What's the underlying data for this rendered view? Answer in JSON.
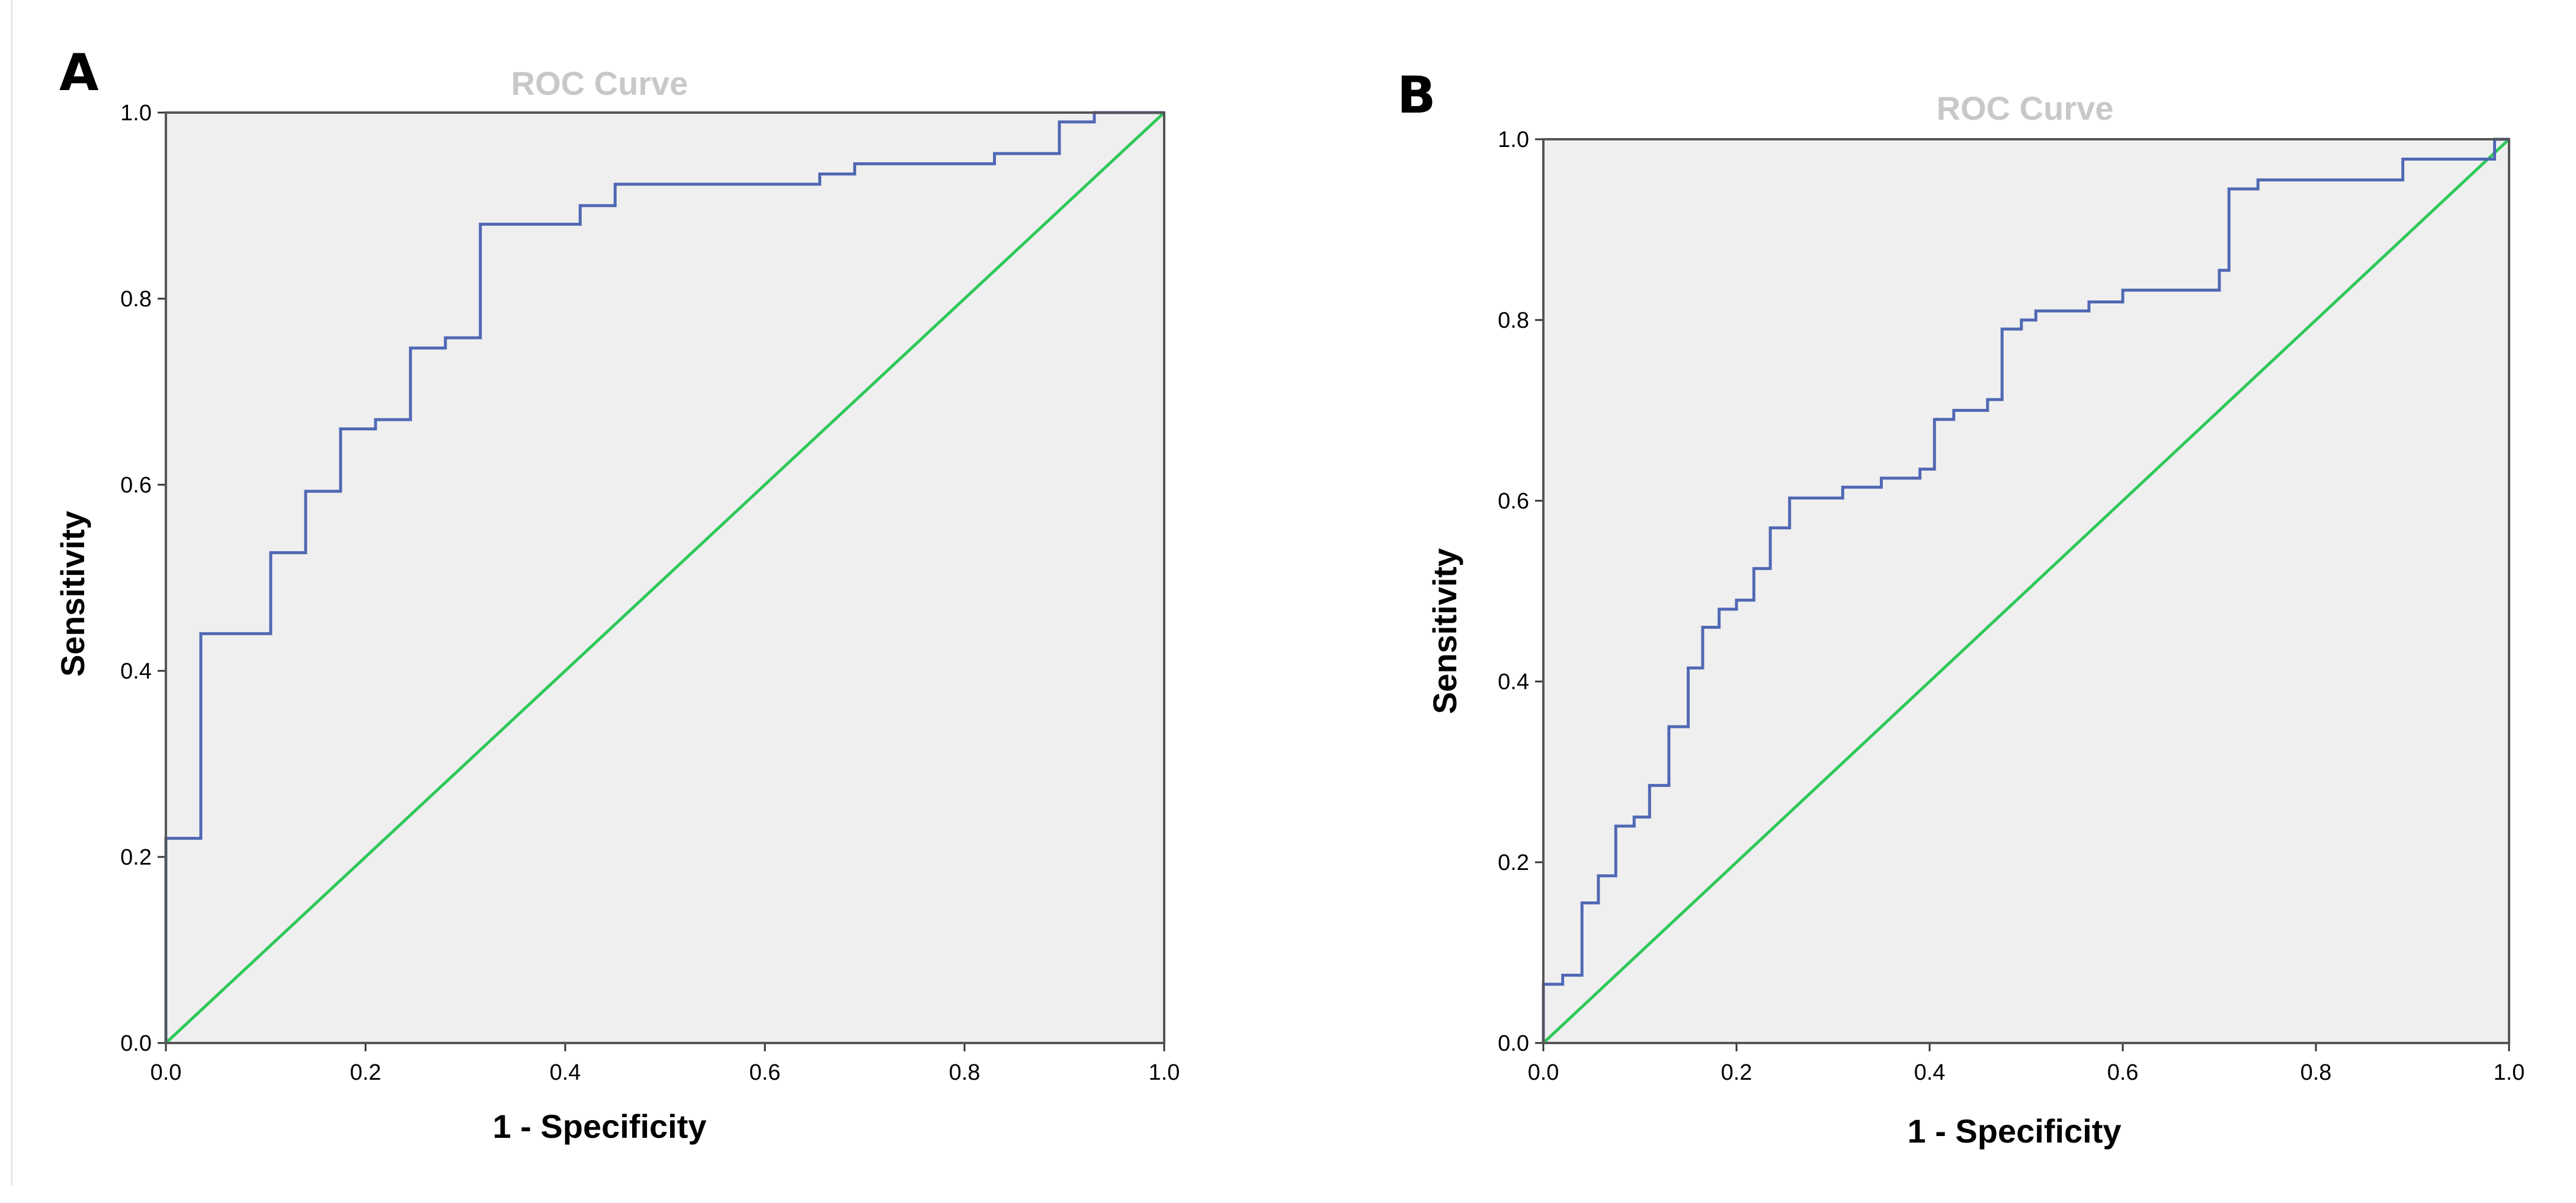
{
  "colors": {
    "roc_curve": "#5068b4",
    "reference_line": "#2ec85a",
    "plot_background": "#efefef",
    "frame": "#555555"
  },
  "chart_data": [
    {
      "type": "line",
      "panel": "A",
      "title": "ROC Curve",
      "xlabel": "1 - Specificity",
      "ylabel": "Sensitivity",
      "xlim": [
        0.0,
        1.0
      ],
      "ylim": [
        0.0,
        1.0
      ],
      "x_ticks": [
        "0.0",
        "0.2",
        "0.4",
        "0.6",
        "0.8",
        "1.0"
      ],
      "y_ticks": [
        "0.0",
        "0.2",
        "0.4",
        "0.6",
        "0.8",
        "1.0"
      ],
      "grid": false,
      "series": [
        {
          "name": "ROC curve",
          "x": [
            0.0,
            0.0,
            0.035,
            0.035,
            0.105,
            0.105,
            0.14,
            0.14,
            0.175,
            0.175,
            0.21,
            0.21,
            0.245,
            0.245,
            0.28,
            0.28,
            0.315,
            0.315,
            0.415,
            0.415,
            0.45,
            0.45,
            0.655,
            0.655,
            0.69,
            0.69,
            0.83,
            0.83,
            0.895,
            0.895,
            0.93,
            0.93,
            1.0
          ],
          "y": [
            0.0,
            0.22,
            0.22,
            0.44,
            0.44,
            0.527,
            0.527,
            0.593,
            0.593,
            0.66,
            0.66,
            0.67,
            0.67,
            0.747,
            0.747,
            0.758,
            0.758,
            0.88,
            0.88,
            0.9,
            0.9,
            0.923,
            0.923,
            0.934,
            0.934,
            0.945,
            0.945,
            0.956,
            0.956,
            0.99,
            0.99,
            1.0,
            1.0
          ]
        },
        {
          "name": "Reference line",
          "x": [
            0.0,
            1.0
          ],
          "y": [
            0.0,
            1.0
          ]
        }
      ]
    },
    {
      "type": "line",
      "panel": "B",
      "title": "ROC Curve",
      "xlabel": "1 - Specificity",
      "ylabel": "Sensitivity",
      "xlim": [
        0.0,
        1.0
      ],
      "ylim": [
        0.0,
        1.0
      ],
      "x_ticks": [
        "0.0",
        "0.2",
        "0.4",
        "0.6",
        "0.8",
        "1.0"
      ],
      "y_ticks": [
        "0.0",
        "0.2",
        "0.4",
        "0.6",
        "0.8",
        "1.0"
      ],
      "grid": false,
      "series": [
        {
          "name": "ROC curve",
          "x": [
            0.0,
            0.0,
            0.02,
            0.02,
            0.04,
            0.04,
            0.057,
            0.057,
            0.075,
            0.075,
            0.094,
            0.094,
            0.11,
            0.11,
            0.13,
            0.13,
            0.15,
            0.15,
            0.165,
            0.165,
            0.182,
            0.182,
            0.2,
            0.2,
            0.218,
            0.218,
            0.235,
            0.235,
            0.255,
            0.255,
            0.31,
            0.31,
            0.35,
            0.35,
            0.39,
            0.39,
            0.405,
            0.405,
            0.425,
            0.425,
            0.46,
            0.46,
            0.475,
            0.475,
            0.495,
            0.495,
            0.51,
            0.51,
            0.565,
            0.565,
            0.6,
            0.6,
            0.7,
            0.7,
            0.71,
            0.71,
            0.74,
            0.74,
            0.89,
            0.89,
            0.985,
            0.985,
            1.0
          ],
          "y": [
            0.0,
            0.065,
            0.065,
            0.075,
            0.075,
            0.155,
            0.155,
            0.185,
            0.185,
            0.24,
            0.24,
            0.25,
            0.25,
            0.285,
            0.285,
            0.35,
            0.35,
            0.415,
            0.415,
            0.46,
            0.46,
            0.48,
            0.48,
            0.49,
            0.49,
            0.525,
            0.525,
            0.57,
            0.57,
            0.603,
            0.603,
            0.615,
            0.615,
            0.625,
            0.625,
            0.635,
            0.635,
            0.69,
            0.69,
            0.7,
            0.7,
            0.712,
            0.712,
            0.79,
            0.79,
            0.8,
            0.8,
            0.81,
            0.81,
            0.82,
            0.82,
            0.833,
            0.833,
            0.855,
            0.855,
            0.945,
            0.945,
            0.955,
            0.955,
            0.978,
            0.978,
            1.0,
            1.0
          ]
        },
        {
          "name": "Reference line",
          "x": [
            0.0,
            1.0
          ],
          "y": [
            0.0,
            1.0
          ]
        }
      ]
    }
  ]
}
